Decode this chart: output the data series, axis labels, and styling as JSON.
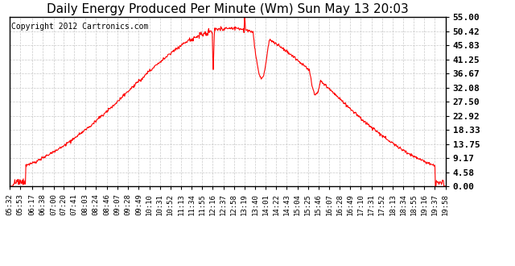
{
  "title": "Daily Energy Produced Per Minute (Wm) Sun May 13 20:03",
  "copyright": "Copyright 2012 Cartronics.com",
  "line_color": "#FF0000",
  "bg_color": "#FFFFFF",
  "plot_bg_color": "#FFFFFF",
  "grid_color": "#BBBBBB",
  "yticks": [
    0.0,
    4.58,
    9.17,
    13.75,
    18.33,
    22.92,
    27.5,
    32.08,
    36.67,
    41.25,
    45.83,
    50.42,
    55.0
  ],
  "ymax": 55.0,
  "ymin": 0.0,
  "xtick_labels": [
    "05:32",
    "06:17",
    "06:38",
    "07:20",
    "07:41",
    "08:03",
    "08:24",
    "08:46",
    "09:07",
    "09:28",
    "09:49",
    "10:10",
    "10:31",
    "10:52",
    "11:13",
    "11:34",
    "11:55",
    "12:16",
    "12:37",
    "12:58",
    "13:19",
    "13:40",
    "14:01",
    "14:22",
    "14:43",
    "15:04",
    "15:25",
    "15:46",
    "16:07",
    "16:28",
    "16:49",
    "17:10",
    "17:31",
    "17:52",
    "18:13",
    "18:34",
    "18:55",
    "19:16",
    "19:37",
    "19:58"
  ],
  "title_fontsize": 11,
  "copyright_fontsize": 7,
  "tick_fontsize": 6.5,
  "ytick_fontsize": 8
}
